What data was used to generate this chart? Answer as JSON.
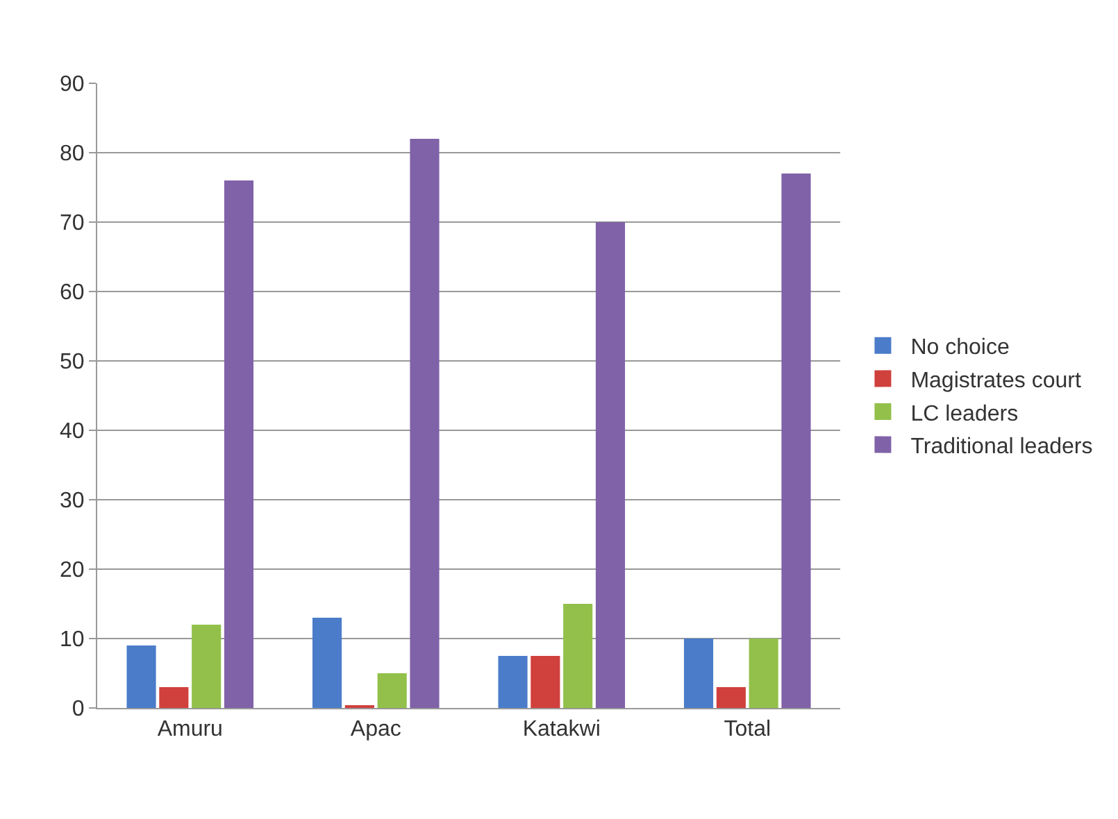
{
  "chart_data": {
    "type": "bar",
    "categories": [
      "Amuru",
      "Apac",
      "Katakwi",
      "Total"
    ],
    "series": [
      {
        "name": "No choice",
        "color": "#4a7cc9",
        "values": [
          9,
          13,
          7.5,
          10
        ]
      },
      {
        "name": "Magistrates court",
        "color": "#d0403c",
        "values": [
          3,
          0.3,
          7.5,
          3
        ]
      },
      {
        "name": "LC leaders",
        "color": "#92c04a",
        "values": [
          12,
          5,
          15,
          10
        ]
      },
      {
        "name": "Traditional leaders",
        "color": "#8062a8",
        "values": [
          76,
          82,
          70,
          77
        ]
      }
    ],
    "ylim": [
      0,
      90
    ],
    "yticks": [
      0,
      10,
      20,
      30,
      40,
      50,
      60,
      70,
      80,
      90
    ],
    "grid": "y",
    "legend": "right"
  }
}
